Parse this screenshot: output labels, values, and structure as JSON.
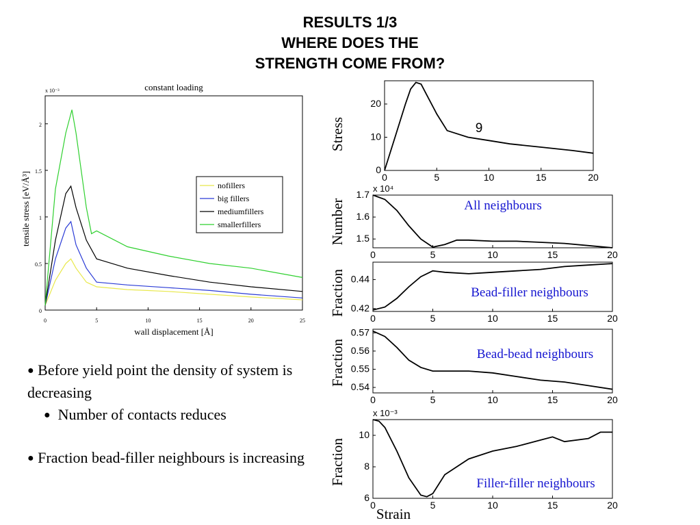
{
  "slide": {
    "title_lines": [
      "RESULTS 1/3",
      "WHERE DOES THE",
      "STRENGTH COME FROM?"
    ]
  },
  "bullets": [
    "Before yield point the density of system is decreasing",
    "Number of contacts reduces",
    "Fraction bead-filler neighbours is increasing"
  ],
  "chart_data": [
    {
      "type": "line",
      "title": "constant loading",
      "xlabel": "wall displacement [Å]",
      "ylabel": "tensile stress [eV/Å³]",
      "y_multiplier": "x 10⁻³",
      "xlim": [
        0,
        25
      ],
      "ylim": [
        0,
        2.3
      ],
      "xticks": [
        0,
        5,
        10,
        15,
        20,
        25
      ],
      "yticks": [
        0,
        0.5,
        1,
        1.5,
        2
      ],
      "ytick_labels": [
        "0",
        "0.5",
        "1",
        "1.5",
        "2"
      ],
      "legend_position": "right",
      "series": [
        {
          "name": "nofillers",
          "color": "#e8e84a",
          "x": [
            0,
            1,
            2,
            2.5,
            3,
            4,
            5,
            8,
            12,
            16,
            20,
            25
          ],
          "y": [
            0.05,
            0.32,
            0.5,
            0.55,
            0.45,
            0.3,
            0.25,
            0.22,
            0.2,
            0.17,
            0.14,
            0.11
          ]
        },
        {
          "name": "big fillers",
          "color": "#2a3bd6",
          "x": [
            0,
            1,
            2,
            2.5,
            3,
            4,
            5,
            8,
            12,
            16,
            20,
            25
          ],
          "y": [
            0.05,
            0.55,
            0.88,
            0.95,
            0.7,
            0.45,
            0.3,
            0.27,
            0.24,
            0.21,
            0.17,
            0.13
          ]
        },
        {
          "name": "mediumfillers",
          "color": "#000000",
          "x": [
            0,
            1,
            2,
            2.5,
            3,
            4,
            5,
            8,
            12,
            16,
            20,
            25
          ],
          "y": [
            0.05,
            0.75,
            1.25,
            1.33,
            1.1,
            0.75,
            0.55,
            0.45,
            0.37,
            0.3,
            0.25,
            0.2
          ]
        },
        {
          "name": "smallerfillers",
          "color": "#2ed02e",
          "x": [
            0,
            1,
            2,
            2.6,
            3,
            4,
            4.5,
            5,
            8,
            12,
            16,
            20,
            25
          ],
          "y": [
            0.05,
            1.3,
            1.9,
            2.15,
            1.9,
            1.1,
            0.82,
            0.85,
            0.68,
            0.58,
            0.5,
            0.45,
            0.35
          ]
        }
      ]
    },
    {
      "type": "line",
      "ylabel": "Stress",
      "annotation": "9",
      "xlim": [
        0,
        20
      ],
      "ylim": [
        0,
        27
      ],
      "xticks": [
        0,
        5,
        10,
        15,
        20
      ],
      "yticks": [
        0,
        10,
        20
      ],
      "series": [
        {
          "x": [
            0,
            1,
            2,
            2.5,
            3,
            3.5,
            4,
            5,
            6,
            8,
            10,
            12,
            15,
            18,
            20
          ],
          "y": [
            0,
            10,
            20,
            24.5,
            26.5,
            26,
            23,
            17,
            12,
            10,
            9,
            8,
            7,
            6,
            5.2
          ]
        }
      ]
    },
    {
      "type": "line",
      "ylabel": "Number",
      "y_multiplier": "x 10⁴",
      "annotation": "All neighbours",
      "xlim": [
        0,
        20
      ],
      "ylim": [
        1.46,
        1.7
      ],
      "xticks": [
        0,
        5,
        10,
        15,
        20
      ],
      "yticks": [
        1.5,
        1.6,
        1.7
      ],
      "series": [
        {
          "x": [
            0,
            1,
            2,
            3,
            4,
            5,
            6,
            7,
            8,
            10,
            12,
            14,
            16,
            18,
            20
          ],
          "y": [
            1.7,
            1.68,
            1.63,
            1.56,
            1.5,
            1.463,
            1.475,
            1.495,
            1.495,
            1.49,
            1.49,
            1.485,
            1.48,
            1.47,
            1.46
          ]
        }
      ]
    },
    {
      "type": "line",
      "ylabel": "Fraction",
      "annotation": "Bead-filler neighbours",
      "xlim": [
        0,
        20
      ],
      "ylim": [
        0.418,
        0.452
      ],
      "xticks": [
        0,
        5,
        10,
        15,
        20
      ],
      "yticks": [
        0.42,
        0.44
      ],
      "series": [
        {
          "x": [
            0,
            1,
            2,
            3,
            4,
            5,
            6,
            8,
            10,
            12,
            14,
            16,
            18,
            20
          ],
          "y": [
            0.419,
            0.421,
            0.427,
            0.435,
            0.442,
            0.446,
            0.445,
            0.444,
            0.445,
            0.446,
            0.447,
            0.449,
            0.45,
            0.451
          ]
        }
      ]
    },
    {
      "type": "line",
      "ylabel": "Fraction",
      "annotation": "Bead-bead neighbours",
      "xlim": [
        0,
        20
      ],
      "ylim": [
        0.537,
        0.572
      ],
      "xticks": [
        0,
        5,
        10,
        15,
        20
      ],
      "yticks": [
        0.54,
        0.55,
        0.56,
        0.57
      ],
      "series": [
        {
          "x": [
            0,
            1,
            2,
            3,
            4,
            5,
            6,
            8,
            10,
            12,
            14,
            16,
            18,
            20
          ],
          "y": [
            0.571,
            0.568,
            0.562,
            0.555,
            0.551,
            0.549,
            0.549,
            0.549,
            0.548,
            0.546,
            0.544,
            0.543,
            0.541,
            0.539
          ]
        }
      ]
    },
    {
      "type": "line",
      "ylabel": "Fraction",
      "xlabel": "Strain",
      "y_multiplier": "x 10⁻³",
      "annotation": "Filler-filler neighbours",
      "xlim": [
        0,
        20
      ],
      "ylim": [
        6,
        11
      ],
      "xticks": [
        0,
        5,
        10,
        15,
        20
      ],
      "yticks": [
        6,
        8,
        10
      ],
      "series": [
        {
          "x": [
            0,
            0.5,
            1,
            2,
            3,
            4,
            4.5,
            5,
            6,
            8,
            10,
            12,
            14,
            15,
            16,
            18,
            19,
            20
          ],
          "y": [
            11,
            10.9,
            10.5,
            9,
            7.3,
            6.2,
            6.1,
            6.3,
            7.5,
            8.5,
            9,
            9.3,
            9.7,
            9.9,
            9.6,
            9.8,
            10.2,
            10.2
          ]
        }
      ]
    }
  ]
}
